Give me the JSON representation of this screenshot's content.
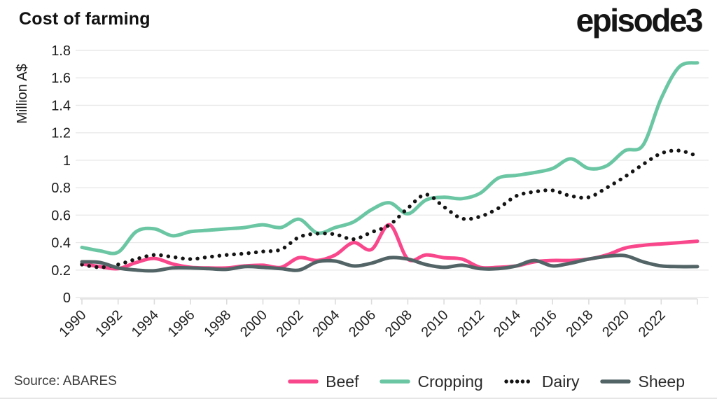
{
  "header": {
    "title": "Cost of farming",
    "logo": "episode3"
  },
  "footer": {
    "source": "Source: ABARES"
  },
  "chart_data": {
    "type": "line",
    "title": "Cost of farming",
    "xlabel": "",
    "ylabel": "Million A$",
    "ylim": [
      0,
      1.8
    ],
    "yticks": [
      0,
      0.2,
      0.4,
      0.6,
      0.8,
      1,
      1.2,
      1.4,
      1.6,
      1.8
    ],
    "xticks": [
      1990,
      1992,
      1994,
      1996,
      1998,
      2000,
      2002,
      2004,
      2006,
      2008,
      2010,
      2012,
      2014,
      2016,
      2018,
      2020,
      2022
    ],
    "grid": "horizontal",
    "legend_position": "bottom",
    "x": [
      1990,
      1991,
      1992,
      1993,
      1994,
      1995,
      1996,
      1997,
      1998,
      1999,
      2000,
      2001,
      2002,
      2003,
      2004,
      2005,
      2006,
      2007,
      2008,
      2009,
      2010,
      2011,
      2012,
      2013,
      2014,
      2015,
      2016,
      2017,
      2018,
      2019,
      2020,
      2021,
      2022,
      2023,
      2024
    ],
    "series": [
      {
        "name": "Beef",
        "color": "#f9478c",
        "style": "solid",
        "values": [
          0.245,
          0.225,
          0.21,
          0.255,
          0.285,
          0.245,
          0.22,
          0.215,
          0.215,
          0.23,
          0.235,
          0.22,
          0.29,
          0.27,
          0.31,
          0.4,
          0.35,
          0.53,
          0.28,
          0.31,
          0.29,
          0.28,
          0.22,
          0.22,
          0.23,
          0.26,
          0.27,
          0.27,
          0.28,
          0.31,
          0.36,
          0.38,
          0.39,
          0.4,
          0.41
        ]
      },
      {
        "name": "Cropping",
        "color": "#6bc6a4",
        "style": "solid",
        "values": [
          0.365,
          0.34,
          0.33,
          0.48,
          0.5,
          0.45,
          0.48,
          0.49,
          0.5,
          0.51,
          0.53,
          0.51,
          0.57,
          0.47,
          0.51,
          0.55,
          0.64,
          0.69,
          0.61,
          0.71,
          0.73,
          0.72,
          0.76,
          0.87,
          0.89,
          0.91,
          0.94,
          1.01,
          0.94,
          0.96,
          1.07,
          1.11,
          1.45,
          1.68,
          1.71
        ]
      },
      {
        "name": "Dairy",
        "color": "#141414",
        "style": "dotted",
        "values": [
          0.24,
          0.22,
          0.24,
          0.28,
          0.31,
          0.295,
          0.28,
          0.295,
          0.31,
          0.32,
          0.335,
          0.35,
          0.44,
          0.465,
          0.46,
          0.425,
          0.475,
          0.53,
          0.65,
          0.75,
          0.66,
          0.575,
          0.59,
          0.65,
          0.74,
          0.77,
          0.78,
          0.74,
          0.73,
          0.8,
          0.88,
          0.97,
          1.05,
          1.07,
          1.03
        ]
      },
      {
        "name": "Sheep",
        "color": "#536466",
        "style": "solid",
        "values": [
          0.26,
          0.255,
          0.215,
          0.2,
          0.195,
          0.215,
          0.215,
          0.21,
          0.205,
          0.225,
          0.22,
          0.21,
          0.2,
          0.26,
          0.265,
          0.23,
          0.25,
          0.29,
          0.28,
          0.24,
          0.22,
          0.235,
          0.21,
          0.21,
          0.23,
          0.27,
          0.23,
          0.25,
          0.28,
          0.3,
          0.305,
          0.26,
          0.23,
          0.225,
          0.225
        ]
      }
    ]
  }
}
